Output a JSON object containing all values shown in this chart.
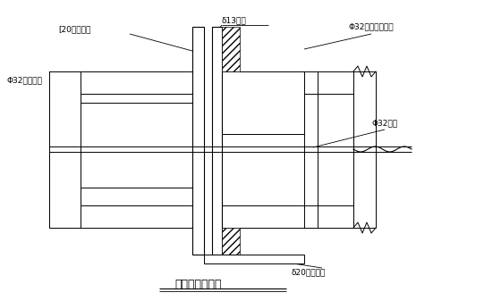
{
  "title": "拉杆位置大样图",
  "bg_color": "#ffffff",
  "labels": {
    "channel_steel": "[20加强槽钢",
    "formface": "δ13模面",
    "nut_long": "Φ32螺母（加长）",
    "nut_rough": "Φ32粗制螺母",
    "rod": "Φ32拉杆",
    "steel_plate": "δ20加强钢板"
  },
  "figsize": [
    5.6,
    3.37
  ],
  "dpi": 100
}
